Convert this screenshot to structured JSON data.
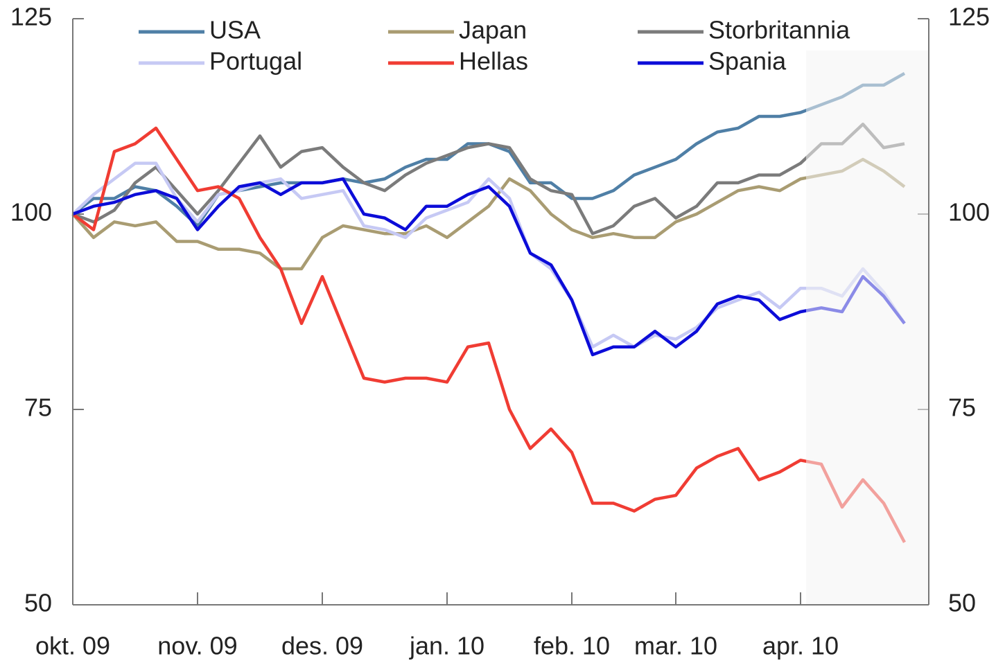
{
  "chart_data": {
    "type": "line",
    "categories": [
      "okt. 09",
      null,
      null,
      null,
      null,
      null,
      "nov. 09",
      null,
      null,
      null,
      null,
      null,
      "des. 09",
      null,
      null,
      null,
      null,
      null,
      "jan. 10",
      null,
      null,
      null,
      null,
      null,
      "feb. 10",
      null,
      null,
      null,
      null,
      "mar. 10",
      null,
      null,
      null,
      null,
      null,
      "apr. 10",
      null,
      null,
      null,
      null,
      null
    ],
    "series": [
      {
        "name": "USA",
        "color": "#4f7fa6",
        "values": [
          100,
          102,
          102,
          103.5,
          103,
          101,
          98.5,
          102.5,
          103,
          103.5,
          104,
          104,
          104,
          104.5,
          104,
          104.5,
          106,
          107,
          107,
          109,
          109,
          108,
          104,
          104,
          102,
          102,
          103,
          105,
          106,
          107,
          109,
          110.5,
          111,
          112.5,
          112.5,
          113,
          114,
          115,
          116.5,
          116.5,
          118
        ]
      },
      {
        "name": "Japan",
        "color": "#a99c72",
        "values": [
          100,
          97,
          99,
          98.5,
          99,
          96.5,
          96.5,
          95.5,
          95.5,
          95,
          93,
          93,
          97,
          98.5,
          98,
          97.5,
          97.5,
          98.5,
          97,
          99,
          101,
          104.5,
          103,
          100,
          98,
          97,
          97.5,
          97,
          97,
          99,
          100,
          101.5,
          103,
          103.5,
          103,
          104.5,
          105,
          105.5,
          107,
          105.5,
          103.5
        ]
      },
      {
        "name": "Storbritannia",
        "color": "#7b7b7b",
        "values": [
          100,
          99,
          100.5,
          104,
          106,
          103,
          100,
          103,
          106.5,
          110,
          106,
          108,
          108.5,
          106,
          104,
          103,
          105,
          106.5,
          107.5,
          108.5,
          109,
          108.5,
          104.5,
          103,
          102.5,
          97.5,
          98.5,
          101,
          102,
          99.5,
          101,
          104,
          104,
          105,
          105,
          106.5,
          109,
          109,
          111.5,
          108.5,
          109
        ]
      },
      {
        "name": "Portugal",
        "color": "#c6c9f4",
        "values": [
          100,
          102.5,
          104.5,
          106.5,
          106.5,
          102,
          99,
          102.5,
          103,
          104,
          104.5,
          102,
          102.5,
          103,
          98.5,
          98,
          97,
          99.5,
          100.5,
          101.5,
          104.5,
          102,
          95,
          93,
          89,
          83,
          84.5,
          83,
          84.5,
          84,
          85.5,
          88,
          89,
          90,
          88,
          90.5,
          90.5,
          89.5,
          93,
          90,
          86
        ]
      },
      {
        "name": "Hellas",
        "color": "#f03c33",
        "values": [
          100,
          98,
          108,
          109,
          111,
          107,
          103,
          103.5,
          102,
          97,
          93,
          86,
          92,
          85.5,
          79,
          78.5,
          79,
          79,
          78.5,
          83,
          83.5,
          75,
          70,
          72.5,
          69.5,
          63,
          63,
          62,
          63.5,
          64,
          67.5,
          69,
          70,
          66,
          67,
          68.5,
          68,
          62.5,
          66,
          63,
          58
        ]
      },
      {
        "name": "Spania",
        "color": "#0c0cd8",
        "values": [
          100,
          101,
          101.5,
          102.5,
          103,
          102,
          98,
          101,
          103.5,
          104,
          102.5,
          104,
          104,
          104.5,
          100,
          99.5,
          98,
          101,
          101,
          102.5,
          103.5,
          101,
          95,
          93.5,
          89,
          82,
          83,
          83,
          85,
          83,
          85,
          88.5,
          89.5,
          89,
          86.5,
          87.5,
          88,
          87.5,
          92,
          89.5,
          86
        ]
      }
    ],
    "ylim": [
      50,
      125
    ],
    "yticks": [
      50,
      75,
      100,
      125
    ],
    "y2lim": [
      50,
      125
    ],
    "y2ticks": [
      50,
      75,
      100,
      125
    ],
    "highlight": {
      "from": 35,
      "color": "#f4f4f4"
    },
    "legend": "top"
  }
}
